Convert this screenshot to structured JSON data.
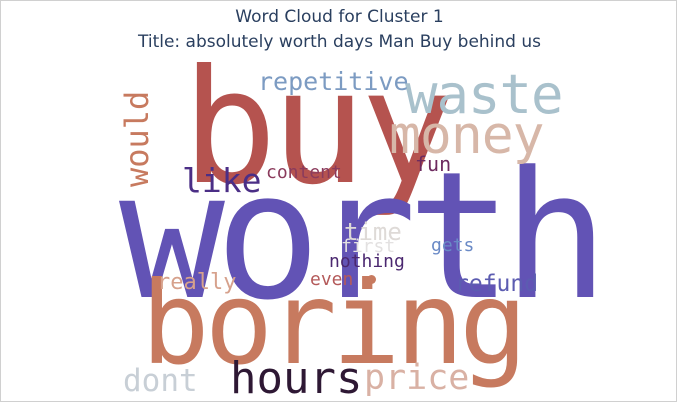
{
  "header": {
    "title_line_1": "Word Cloud for Cluster 1",
    "title_line_2": "Title: absolutely worth days Man Buy behind us"
  },
  "words": {
    "worth": {
      "text": "worth",
      "color": "#6253b5"
    },
    "buy": {
      "text": "buy",
      "color": "#b5534f"
    },
    "boring": {
      "text": "boring",
      "color": "#c77a5f"
    },
    "waste": {
      "text": "waste",
      "color": "#a9c1cc"
    },
    "money": {
      "text": "money",
      "color": "#d7b7a8"
    },
    "would": {
      "text": "would",
      "color": "#c77a5f"
    },
    "repetitive": {
      "text": "repetitive",
      "color": "#7c9bc2"
    },
    "like": {
      "text": "like",
      "color": "#4b2e86"
    },
    "content": {
      "text": "content",
      "color": "#8b3b5c"
    },
    "fun": {
      "text": "fun",
      "color": "#6d2a5f"
    },
    "time": {
      "text": "time",
      "color": "#dedad7"
    },
    "first": {
      "text": "first",
      "color": "#e3e1e1"
    },
    "gets": {
      "text": "gets",
      "color": "#6a8ac6"
    },
    "nothing": {
      "text": "nothing",
      "color": "#4b2870"
    },
    "even": {
      "text": "even",
      "color": "#b45a5a"
    },
    "really": {
      "text": "really",
      "color": "#d6a18c"
    },
    "refund": {
      "text": "refund",
      "color": "#5c5cb1"
    },
    "dont": {
      "text": "dont",
      "color": "#c8cfd6"
    },
    "hours": {
      "text": "hours",
      "color": "#2e1834"
    },
    "price": {
      "text": "price",
      "color": "#d9b1a4"
    }
  }
}
